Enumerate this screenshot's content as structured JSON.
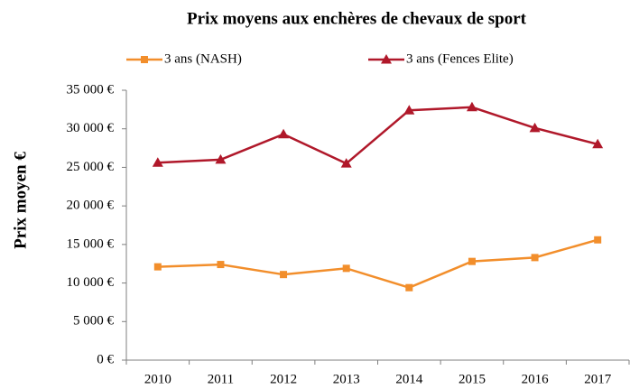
{
  "chart_data": {
    "type": "line",
    "title": "Prix moyens aux enchères de chevaux de sport",
    "ylabel": "Prix moyen €",
    "categories": [
      "2010",
      "2011",
      "2012",
      "2013",
      "2014",
      "2015",
      "2016",
      "2017"
    ],
    "series": [
      {
        "name": "3 ans (NASH)",
        "color": "#f28e2b",
        "marker": "square",
        "values": [
          12100,
          12400,
          11100,
          11900,
          9400,
          12800,
          13300,
          15600
        ]
      },
      {
        "name": "3 ans (Fences Elite)",
        "color": "#b0182a",
        "marker": "triangle",
        "values": [
          25600,
          26000,
          29300,
          25500,
          32400,
          32800,
          30100,
          28000
        ]
      }
    ],
    "ylim": [
      0,
      35000
    ],
    "yticks": [
      {
        "value": 0,
        "label": "0 €"
      },
      {
        "value": 5000,
        "label": "5 000 €"
      },
      {
        "value": 10000,
        "label": "10 000 €"
      },
      {
        "value": 15000,
        "label": "15 000 €"
      },
      {
        "value": 20000,
        "label": "20 000 €"
      },
      {
        "value": 25000,
        "label": "25 000 €"
      },
      {
        "value": 30000,
        "label": "30 000 €"
      },
      {
        "value": 35000,
        "label": "35 000 €"
      }
    ],
    "grid": false,
    "legend": "top"
  }
}
